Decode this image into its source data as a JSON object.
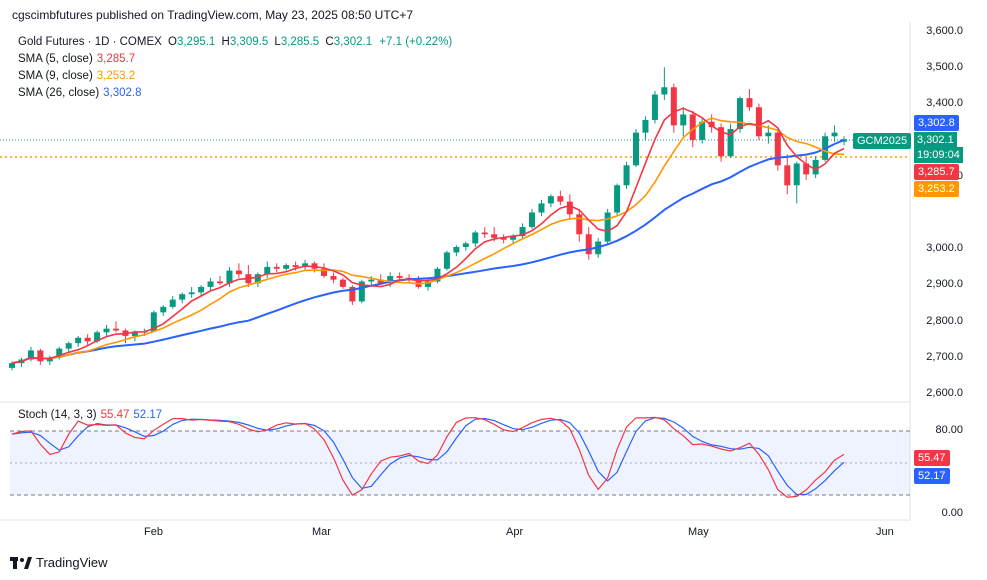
{
  "header": {
    "published": "cgscimbfutures published on TradingView.com, May 23, 2025 08:50 UTC+7"
  },
  "legend": {
    "symbol": "Gold Futures · 1D · COMEX",
    "o_key": "O",
    "o_val": "3,295.1",
    "h_key": "H",
    "h_val": "3,309.5",
    "l_key": "L",
    "l_val": "3,285.5",
    "c_key": "C",
    "c_val": "3,302.1",
    "change": "+7.1 (+0.22%)",
    "sma5_label": "SMA (5, close)",
    "sma5_val": "3,285.7",
    "sma9_label": "SMA (9, close)",
    "sma9_val": "3,253.2",
    "sma26_label": "SMA (26, close)",
    "sma26_val": "3,302.8"
  },
  "stoch_legend": {
    "label": "Stoch (14, 3, 3)",
    "k_val": "55.47",
    "d_val": "52.17"
  },
  "price_axis": [
    "3,600.0",
    "3,500.0",
    "3,400.0",
    "3,300.0",
    "3,200.0",
    "3,100.0",
    "3,000.0",
    "2,900.0",
    "2,800.0",
    "2,700.0",
    "2,600.0"
  ],
  "stoch_axis": [
    "80.00",
    "0.00"
  ],
  "time_axis": [
    "Feb",
    "Mar",
    "Apr",
    "May",
    "Jun"
  ],
  "badges": {
    "sma26": "3,302.8",
    "symbol_tag": "GCM2025",
    "last_price": "3,302.1",
    "countdown": "19:09:04",
    "sma5": "3,285.7",
    "sma9": "3,253.2",
    "stoch_k": "55.47",
    "stoch_d": "52.17"
  },
  "colors": {
    "up": "#089981",
    "down": "#f23645",
    "sma5": "#f23645",
    "sma9": "#ff9800",
    "sma26": "#2962ff",
    "stoch_k": "#f23645",
    "stoch_d": "#2962ff"
  },
  "footer": {
    "brand": "TradingView"
  },
  "chart_data": {
    "type": "candlestick",
    "title": "Gold Futures · 1D · COMEX",
    "ylim": [
      2600,
      3600
    ],
    "candles_ohlc": [
      [
        2672,
        2690,
        2665,
        2685
      ],
      [
        2685,
        2700,
        2675,
        2695
      ],
      [
        2695,
        2730,
        2690,
        2720
      ],
      [
        2720,
        2725,
        2680,
        2690
      ],
      [
        2690,
        2705,
        2680,
        2700
      ],
      [
        2700,
        2730,
        2695,
        2725
      ],
      [
        2725,
        2745,
        2715,
        2740
      ],
      [
        2740,
        2760,
        2730,
        2755
      ],
      [
        2755,
        2765,
        2735,
        2745
      ],
      [
        2745,
        2775,
        2740,
        2770
      ],
      [
        2770,
        2790,
        2760,
        2780
      ],
      [
        2780,
        2800,
        2770,
        2775
      ],
      [
        2775,
        2780,
        2740,
        2760
      ],
      [
        2760,
        2775,
        2745,
        2770
      ],
      [
        2770,
        2780,
        2760,
        2772
      ],
      [
        2772,
        2830,
        2770,
        2825
      ],
      [
        2825,
        2845,
        2815,
        2840
      ],
      [
        2840,
        2870,
        2835,
        2860
      ],
      [
        2860,
        2880,
        2850,
        2875
      ],
      [
        2875,
        2895,
        2865,
        2880
      ],
      [
        2880,
        2900,
        2870,
        2895
      ],
      [
        2895,
        2920,
        2885,
        2910
      ],
      [
        2910,
        2925,
        2900,
        2905
      ],
      [
        2905,
        2950,
        2895,
        2940
      ],
      [
        2940,
        2960,
        2920,
        2930
      ],
      [
        2930,
        2955,
        2895,
        2905
      ],
      [
        2905,
        2935,
        2895,
        2930
      ],
      [
        2930,
        2965,
        2920,
        2950
      ],
      [
        2950,
        2960,
        2935,
        2945
      ],
      [
        2945,
        2960,
        2940,
        2955
      ],
      [
        2955,
        2965,
        2940,
        2950
      ],
      [
        2950,
        2970,
        2940,
        2960
      ],
      [
        2960,
        2965,
        2935,
        2945
      ],
      [
        2945,
        2960,
        2920,
        2925
      ],
      [
        2925,
        2935,
        2905,
        2915
      ],
      [
        2915,
        2920,
        2890,
        2895
      ],
      [
        2895,
        2900,
        2845,
        2855
      ],
      [
        2855,
        2915,
        2850,
        2910
      ],
      [
        2910,
        2925,
        2895,
        2915
      ],
      [
        2915,
        2930,
        2900,
        2905
      ],
      [
        2905,
        2935,
        2895,
        2925
      ],
      [
        2925,
        2935,
        2910,
        2920
      ],
      [
        2920,
        2930,
        2905,
        2915
      ],
      [
        2915,
        2925,
        2890,
        2895
      ],
      [
        2895,
        2920,
        2885,
        2910
      ],
      [
        2910,
        2950,
        2905,
        2945
      ],
      [
        2945,
        2995,
        2940,
        2990
      ],
      [
        2990,
        3010,
        2980,
        3005
      ],
      [
        3005,
        3020,
        2995,
        3015
      ],
      [
        3015,
        3050,
        3005,
        3045
      ],
      [
        3045,
        3060,
        3030,
        3040
      ],
      [
        3040,
        3060,
        3020,
        3030
      ],
      [
        3030,
        3040,
        3015,
        3025
      ],
      [
        3025,
        3040,
        3015,
        3035
      ],
      [
        3035,
        3070,
        3025,
        3060
      ],
      [
        3060,
        3110,
        3055,
        3100
      ],
      [
        3100,
        3135,
        3090,
        3125
      ],
      [
        3125,
        3150,
        3115,
        3145
      ],
      [
        3145,
        3160,
        3120,
        3130
      ],
      [
        3130,
        3150,
        3080,
        3095
      ],
      [
        3095,
        3110,
        3020,
        3040
      ],
      [
        3040,
        3060,
        2970,
        2985
      ],
      [
        2985,
        3030,
        2975,
        3020
      ],
      [
        3020,
        3110,
        3010,
        3100
      ],
      [
        3100,
        3180,
        3090,
        3175
      ],
      [
        3175,
        3240,
        3165,
        3230
      ],
      [
        3230,
        3330,
        3225,
        3320
      ],
      [
        3320,
        3365,
        3300,
        3355
      ],
      [
        3355,
        3435,
        3345,
        3425
      ],
      [
        3425,
        3500,
        3410,
        3445
      ],
      [
        3445,
        3455,
        3320,
        3340
      ],
      [
        3340,
        3390,
        3310,
        3370
      ],
      [
        3370,
        3380,
        3280,
        3300
      ],
      [
        3300,
        3360,
        3290,
        3350
      ],
      [
        3350,
        3370,
        3320,
        3335
      ],
      [
        3335,
        3345,
        3240,
        3255
      ],
      [
        3255,
        3345,
        3250,
        3330
      ],
      [
        3330,
        3420,
        3320,
        3415
      ],
      [
        3415,
        3440,
        3380,
        3390
      ],
      [
        3390,
        3400,
        3300,
        3310
      ],
      [
        3310,
        3340,
        3290,
        3320
      ],
      [
        3320,
        3330,
        3215,
        3230
      ],
      [
        3230,
        3260,
        3150,
        3175
      ],
      [
        3175,
        3240,
        3125,
        3235
      ],
      [
        3235,
        3250,
        3190,
        3205
      ],
      [
        3205,
        3255,
        3195,
        3245
      ],
      [
        3245,
        3320,
        3240,
        3310
      ],
      [
        3310,
        3340,
        3295,
        3320
      ],
      [
        3295,
        3310,
        3285,
        3302
      ]
    ],
    "sma5_last": 3285.7,
    "sma9_last": 3253.2,
    "sma26_last": 3302.8,
    "stoch_k_last": 55.47,
    "stoch_d_last": 52.17
  }
}
